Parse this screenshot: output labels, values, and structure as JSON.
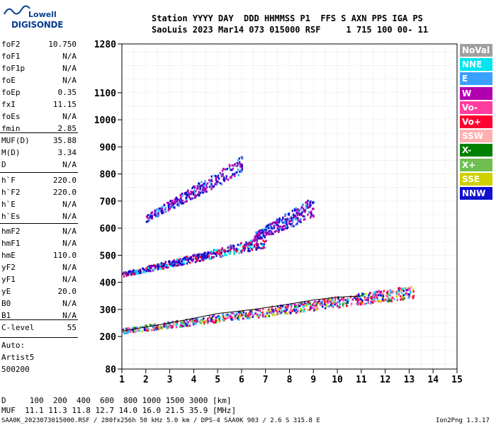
{
  "header": {
    "line1": "Station YYYY DAY  DDD HHMMSS P1  FFS S AXN PPS IGA PS",
    "line2": "SaoLuis 2023 Mar14 073 015000 RSF     1 715 100 00- 11"
  },
  "logo": {
    "brand_top": "Lowell",
    "brand_main": "DIGISONDE"
  },
  "params_group1": [
    {
      "name": "foF2",
      "value": "10.750"
    },
    {
      "name": "foF1",
      "value": "N/A"
    },
    {
      "name": "foF1p",
      "value": "N/A"
    },
    {
      "name": "foE",
      "value": "N/A"
    },
    {
      "name": "foEp",
      "value": "0.35"
    },
    {
      "name": "fxI",
      "value": "11.15"
    },
    {
      "name": "foEs",
      "value": "N/A"
    },
    {
      "name": "fmin",
      "value": "2.85"
    }
  ],
  "params_group2": [
    {
      "name": "MUF(D)",
      "value": "35.88"
    },
    {
      "name": "M(D)",
      "value": "3.34"
    },
    {
      "name": "D",
      "value": "N/A"
    }
  ],
  "params_group3": [
    {
      "name": "h`F",
      "value": "220.0"
    },
    {
      "name": "h`F2",
      "value": "220.0"
    },
    {
      "name": "h`E",
      "value": "N/A"
    },
    {
      "name": "h`Es",
      "value": "N/A"
    }
  ],
  "params_group4": [
    {
      "name": "hmF2",
      "value": "N/A"
    },
    {
      "name": "hmF1",
      "value": "N/A"
    },
    {
      "name": "hmE",
      "value": "110.0"
    },
    {
      "name": "yF2",
      "value": "N/A"
    },
    {
      "name": "yF1",
      "value": "N/A"
    },
    {
      "name": "yE",
      "value": "20.0"
    },
    {
      "name": "B0",
      "value": "N/A"
    },
    {
      "name": "B1",
      "value": "N/A"
    }
  ],
  "params_group5": [
    {
      "name": "C-level",
      "value": "55"
    }
  ],
  "autoscaling": [
    "Auto:",
    "Artist5",
    "500200"
  ],
  "legend": [
    {
      "label": "NoVal",
      "color": "#a0a0a0"
    },
    {
      "label": "NNE",
      "color": "#00e5ee"
    },
    {
      "label": "E",
      "color": "#3aa0ff"
    },
    {
      "label": "W",
      "color": "#b000b0"
    },
    {
      "label": "Vo-",
      "color": "#ff3ca0"
    },
    {
      "label": "Vo+",
      "color": "#ff0030"
    },
    {
      "label": "SSW",
      "color": "#ffb0b0"
    },
    {
      "label": "X-",
      "color": "#008000"
    },
    {
      "label": "X+",
      "color": "#70c050"
    },
    {
      "label": "SSE",
      "color": "#d0d000"
    },
    {
      "label": "NNW",
      "color": "#1010d0"
    }
  ],
  "muf_table": {
    "d_row": "D     100  200  400  600  800 1000 1500 3000 [km]",
    "muf_row": "MUF  11.1 11.3 11.8 12.7 14.0 16.0 21.5 35.9 [MHz]"
  },
  "footer": {
    "left": "SAA0K_2023073015000.RSF / 280fx256h 50 kHz 5.0 km / DPS-4 SAA0K 903 / 2.6 S 315.8 E",
    "right": "Ion2Png 1.3.17"
  },
  "chart_data": {
    "type": "scatter",
    "xlabel": "",
    "ylabel": "",
    "xlim": [
      1,
      15
    ],
    "ylim": [
      80,
      1280
    ],
    "x_ticks": [
      1,
      2,
      3,
      4,
      5,
      6,
      7,
      8,
      9,
      10,
      11,
      12,
      13,
      14,
      15
    ],
    "y_ticks": [
      80,
      200,
      300,
      400,
      500,
      600,
      700,
      800,
      900,
      1000,
      1100,
      1280
    ],
    "grid": true,
    "traces": [
      {
        "name": "F-layer 1st hop",
        "x_from": 1.0,
        "x_to": 13.2,
        "h_start": 215,
        "h_end": 355,
        "spread": 30,
        "density": 0.9
      },
      {
        "name": "2nd hop",
        "x_from": 1.0,
        "x_to": 7.0,
        "h_start": 425,
        "h_end": 540,
        "spread": 25,
        "density": 0.55
      },
      {
        "name": "3rd hop",
        "x_from": 2.0,
        "x_to": 6.0,
        "h_start": 630,
        "h_end": 820,
        "spread": 40,
        "density": 0.35
      },
      {
        "name": "Upper spread",
        "x_from": 6.5,
        "x_to": 9.0,
        "h_start": 560,
        "h_end": 660,
        "spread": 50,
        "density": 0.3
      }
    ],
    "trace_line": {
      "x": [
        1.0,
        3.0,
        5.0,
        6.5,
        8.0,
        9.0,
        10.0,
        11.0
      ],
      "y": [
        220,
        250,
        285,
        300,
        320,
        335,
        345,
        350
      ]
    }
  }
}
